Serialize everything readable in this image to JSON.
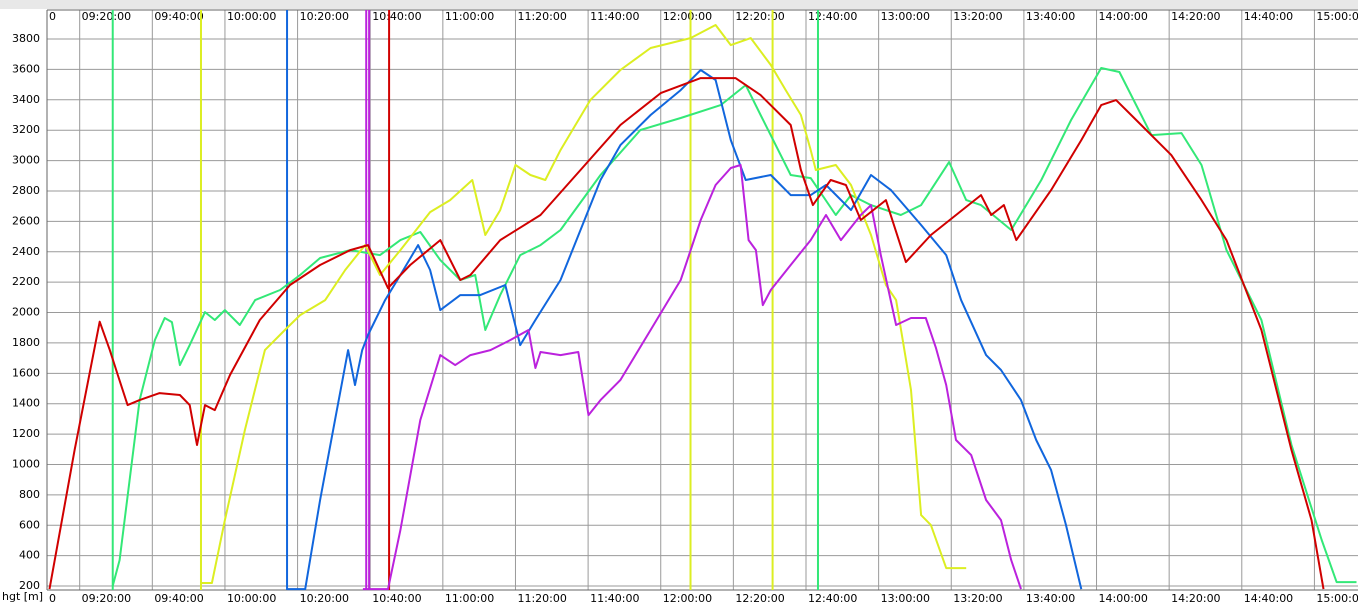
{
  "chart_data": {
    "type": "line",
    "y_axis_label": "hgt [m]",
    "xlim": [
      551,
      912
    ],
    "ylim": [
      174,
      3991
    ],
    "xticks": [
      {
        "value": 551,
        "label": "0"
      },
      {
        "value": 560,
        "label": "09:20:00"
      },
      {
        "value": 580,
        "label": "09:40:00"
      },
      {
        "value": 600,
        "label": "10:00:00"
      },
      {
        "value": 620,
        "label": "10:20:00"
      },
      {
        "value": 640,
        "label": "10:40:00"
      },
      {
        "value": 660,
        "label": "11:00:00"
      },
      {
        "value": 680,
        "label": "11:20:00"
      },
      {
        "value": 700,
        "label": "11:40:00"
      },
      {
        "value": 720,
        "label": "12:00:00"
      },
      {
        "value": 740,
        "label": "12:20:00"
      },
      {
        "value": 760,
        "label": "12:40:00"
      },
      {
        "value": 780,
        "label": "13:00:00"
      },
      {
        "value": 800,
        "label": "13:20:00"
      },
      {
        "value": 820,
        "label": "13:40:00"
      },
      {
        "value": 840,
        "label": "14:00:00"
      },
      {
        "value": 860,
        "label": "14:20:00"
      },
      {
        "value": 880,
        "label": "14:40:00"
      },
      {
        "value": 900,
        "label": "15:00:00"
      }
    ],
    "yticks": [
      200,
      400,
      600,
      800,
      1000,
      1200,
      1400,
      1600,
      1800,
      2000,
      2200,
      2400,
      2600,
      2800,
      3000,
      3200,
      3400,
      3600,
      3800
    ],
    "grid": true,
    "markers": [
      {
        "x": 569.1,
        "color": "#33e877"
      },
      {
        "x": 593.4,
        "color": "#dcee22"
      },
      {
        "x": 617.1,
        "color": "#1166dd"
      },
      {
        "x": 638.9,
        "color": "#bb22dd"
      },
      {
        "x": 639.7,
        "color": "#bb22dd"
      },
      {
        "x": 645.2,
        "color": "#d00000"
      },
      {
        "x": 728.2,
        "color": "#dcee22"
      },
      {
        "x": 750.8,
        "color": "#dcee22"
      },
      {
        "x": 763.3,
        "color": "#33e877"
      }
    ],
    "series": [
      {
        "color": "#33e877",
        "x": [
          569.1,
          571,
          576.5,
          580.7,
          583.4,
          585.4,
          587.6,
          590.3,
          594.5,
          597.2,
          600,
          604.1,
          608.3,
          615.2,
          620.7,
          626.2,
          634.5,
          642.7,
          648.3,
          653.8,
          659.3,
          664.8,
          668.9,
          671.7,
          675.8,
          681.3,
          686.9,
          692.4,
          703.4,
          714.4,
          725.5,
          736.5,
          743.4,
          747.5,
          755.8,
          761.3,
          768.2,
          772.4,
          777.9,
          786.1,
          791.7,
          799.4,
          804.1,
          808.2,
          816.5,
          824.8,
          833,
          841.3,
          846.3,
          855.1,
          863.4,
          868.9,
          875.8,
          885.4,
          893.7,
          902,
          906.1,
          911.6
        ],
        "values": [
          200,
          371,
          1424,
          1819,
          1964,
          1937,
          1654,
          1786,
          2003,
          1951,
          2016,
          1918,
          2082,
          2148,
          2247,
          2359,
          2411,
          2378,
          2477,
          2530,
          2345,
          2214,
          2247,
          1885,
          2115,
          2378,
          2444,
          2543,
          2905,
          3201,
          3280,
          3365,
          3497,
          3300,
          2905,
          2885,
          2642,
          2773,
          2707,
          2642,
          2707,
          2990,
          2740,
          2707,
          2543,
          2872,
          3267,
          3609,
          3583,
          3168,
          3181,
          2971,
          2411,
          1951,
          1128,
          503,
          226,
          226
        ]
      },
      {
        "color": "#dcee22",
        "x": [
          593.4,
          596.4,
          600,
          605.5,
          611,
          616.5,
          620.7,
          627.6,
          633.1,
          638.6,
          642.7,
          648.3,
          656.5,
          662,
          668.1,
          671.7,
          675.8,
          680,
          684.1,
          688.2,
          692.4,
          700.6,
          708.9,
          717.2,
          728.2,
          735.1,
          739.3,
          744.8,
          750.3,
          754.4,
          758.6,
          761.3,
          762.7,
          768.2,
          772.4,
          777.9,
          782,
          784.8,
          788.9,
          791.7,
          794.4,
          798.6,
          804.1
        ],
        "values": [
          220,
          220,
          634,
          1227,
          1753,
          1885,
          1983,
          2082,
          2280,
          2444,
          2247,
          2411,
          2661,
          2740,
          2872,
          2510,
          2674,
          2971,
          2905,
          2872,
          3069,
          3398,
          3596,
          3741,
          3806,
          3892,
          3760,
          3806,
          3629,
          3464,
          3300,
          3069,
          2938,
          2971,
          2839,
          2510,
          2181,
          2082,
          1490,
          667,
          601,
          318,
          318
        ]
      },
      {
        "color": "#1166dd",
        "x": [
          617.1,
          622.1,
          626.2,
          630.3,
          633.9,
          635.8,
          637.8,
          639.4,
          644.1,
          648.3,
          653.2,
          656.5,
          659.3,
          664.8,
          670.3,
          677.2,
          681.3,
          685.5,
          692.4,
          697.9,
          703.4,
          708.9,
          717.2,
          725.5,
          731,
          735.1,
          739.3,
          743.4,
          750.3,
          755.8,
          761.3,
          765.5,
          772.4,
          777.9,
          783.4,
          791.7,
          798.6,
          802.7,
          809.6,
          813.7,
          819.2,
          823.4,
          827.5,
          831.6,
          835.8
        ],
        "values": [
          180,
          180,
          766,
          1292,
          1753,
          1523,
          1753,
          1852,
          2082,
          2247,
          2444,
          2280,
          2016,
          2115,
          2115,
          2181,
          1786,
          1951,
          2214,
          2543,
          2872,
          3102,
          3300,
          3464,
          3596,
          3530,
          3135,
          2872,
          2905,
          2773,
          2773,
          2839,
          2674,
          2905,
          2806,
          2576,
          2378,
          2082,
          1720,
          1622,
          1424,
          1161,
          963,
          601,
          180
        ]
      },
      {
        "color": "#bb22dd",
        "x": [
          638,
          644.9,
          648.3,
          653.8,
          659.3,
          663.4,
          667.6,
          673.1,
          678.6,
          683.6,
          685.5,
          686.9,
          692.4,
          697.3,
          700.1,
          703.4,
          708.9,
          717.2,
          725.5,
          731,
          735.1,
          739.3,
          742,
          744.2,
          746.2,
          748.1,
          750.3,
          755.8,
          761.3,
          765.5,
          769.6,
          775.1,
          777.9,
          780.6,
          784.8,
          788.9,
          793,
          795.8,
          798.6,
          801.3,
          805.5,
          809.6,
          813.7,
          816.5,
          819.2
        ],
        "values": [
          180,
          180,
          569,
          1292,
          1720,
          1654,
          1720,
          1753,
          1819,
          1885,
          1635,
          1740,
          1720,
          1740,
          1325,
          1424,
          1556,
          1885,
          2214,
          2609,
          2839,
          2951,
          2971,
          2477,
          2411,
          2049,
          2148,
          2313,
          2477,
          2642,
          2477,
          2642,
          2707,
          2378,
          1918,
          1964,
          1964,
          1766,
          1523,
          1161,
          1062,
          766,
          634,
          371,
          180
        ]
      },
      {
        "color": "#d00000",
        "x": [
          551.7,
          558.6,
          565.5,
          568.3,
          570.5,
          573.2,
          576.5,
          582,
          587.6,
          590.3,
          592.3,
          594.5,
          597.2,
          601.4,
          609.6,
          617.9,
          626.2,
          634.5,
          639.4,
          644.9,
          651,
          659.3,
          664.8,
          667.6,
          675.8,
          686.9,
          697.9,
          708.9,
          720,
          731,
          740.6,
          747.5,
          755.8,
          758.6,
          761.9,
          766.8,
          771,
          775.1,
          782,
          787.5,
          794.4,
          808.2,
          811,
          814.5,
          817.9,
          827.5,
          835.8,
          841.3,
          845.4,
          852.3,
          860.6,
          868.9,
          875.8,
          885.4,
          893.7,
          899.2,
          902.5
        ],
        "values": [
          180,
          1095,
          1940,
          1753,
          1589,
          1391,
          1424,
          1470,
          1457,
          1391,
          1128,
          1391,
          1358,
          1589,
          1951,
          2181,
          2313,
          2411,
          2444,
          2161,
          2313,
          2477,
          2214,
          2247,
          2477,
          2642,
          2938,
          3234,
          3444,
          3543,
          3543,
          3431,
          3234,
          2938,
          2707,
          2872,
          2839,
          2609,
          2740,
          2332,
          2510,
          2773,
          2642,
          2707,
          2477,
          2806,
          3135,
          3365,
          3398,
          3234,
          3036,
          2740,
          2477,
          1885,
          1095,
          634,
          180
        ]
      }
    ]
  }
}
